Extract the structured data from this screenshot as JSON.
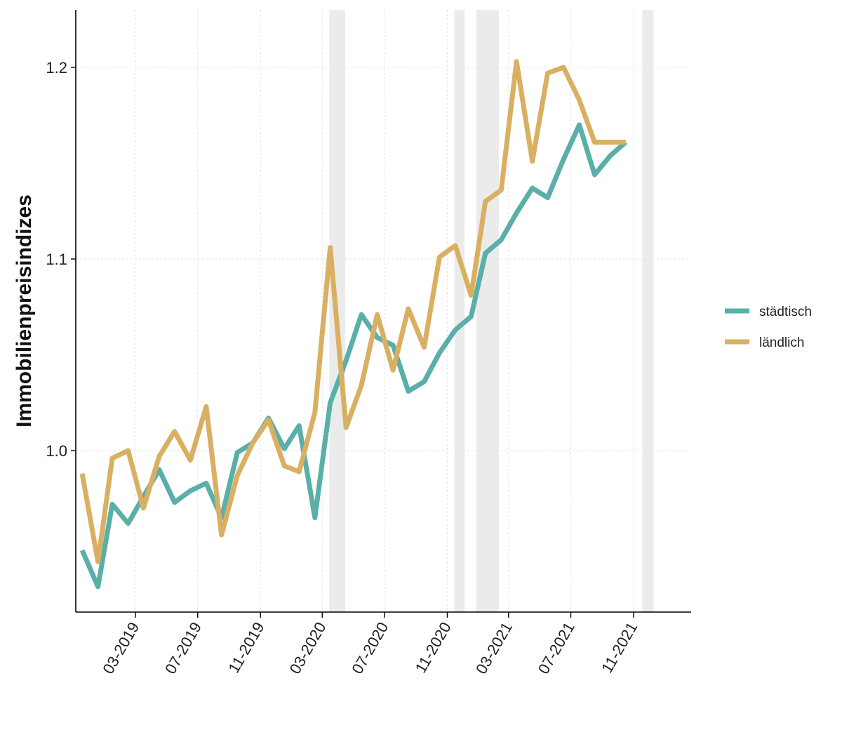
{
  "chart_data": {
    "type": "line",
    "title": "",
    "xlabel": "",
    "ylabel": "Immobilienpreisindizes",
    "x": [
      "2019-01",
      "2019-02",
      "2019-03",
      "2019-04",
      "2019-05",
      "2019-06",
      "2019-07",
      "2019-08",
      "2019-09",
      "2019-10",
      "2019-11",
      "2019-12",
      "2020-01",
      "2020-02",
      "2020-03",
      "2020-04",
      "2020-05",
      "2020-06",
      "2020-07",
      "2020-08",
      "2020-09",
      "2020-10",
      "2020-11",
      "2020-12",
      "2021-01",
      "2021-02",
      "2021-03",
      "2021-04",
      "2021-05",
      "2021-06",
      "2021-07",
      "2021-08",
      "2021-09",
      "2021-10",
      "2021-11",
      "2021-12"
    ],
    "x_tick_labels": [
      "03-2019",
      "07-2019",
      "11-2019",
      "03-2020",
      "07-2020",
      "11-2020",
      "03-2021",
      "07-2021",
      "11-2021"
    ],
    "x_tick_dates": [
      "2019-03",
      "2019-07",
      "2019-11",
      "2020-03",
      "2020-07",
      "2020-11",
      "2021-03",
      "2021-07",
      "2021-11"
    ],
    "ylim": [
      0.92,
      1.23
    ],
    "y_ticks": [
      1.0,
      1.1,
      1.2
    ],
    "y_tick_labels": [
      "1.0",
      "1.1",
      "1.2"
    ],
    "grid": true,
    "legend_position": "right",
    "shaded_periods": [
      [
        "2020-03-15",
        "2020-04-15"
      ],
      [
        "2020-11-15",
        "2020-12-05"
      ],
      [
        "2020-12-28",
        "2021-02-10"
      ],
      [
        "2021-11-18",
        "2021-12-10"
      ]
    ],
    "shade_color": "#ebebeb",
    "series": [
      {
        "name": "städtisch",
        "color": "#5aafa8",
        "values": [
          0.948,
          0.929,
          0.972,
          0.962,
          0.976,
          0.99,
          0.973,
          0.979,
          0.983,
          0.965,
          0.999,
          1.004,
          1.017,
          1.001,
          1.013,
          0.965,
          1.025,
          1.047,
          1.071,
          1.059,
          1.055,
          1.031,
          1.036,
          1.051,
          1.063,
          1.07,
          1.103,
          1.11,
          1.124,
          1.137,
          1.132,
          1.152,
          1.17,
          1.144,
          1.154,
          1.161
        ]
      },
      {
        "name": "ländlich",
        "color": "#d9b062",
        "values": [
          0.988,
          0.942,
          0.996,
          1.0,
          0.97,
          0.997,
          1.01,
          0.995,
          1.023,
          0.956,
          0.987,
          1.004,
          1.016,
          0.992,
          0.989,
          1.02,
          1.106,
          1.012,
          1.034,
          1.071,
          1.042,
          1.074,
          1.054,
          1.101,
          1.107,
          1.081,
          1.13,
          1.136,
          1.203,
          1.151,
          1.197,
          1.2,
          1.183,
          1.161,
          1.161,
          1.161
        ]
      }
    ]
  }
}
